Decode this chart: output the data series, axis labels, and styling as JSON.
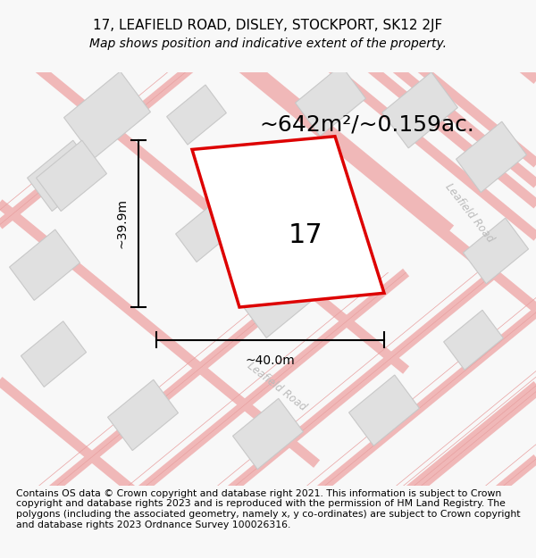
{
  "title_line1": "17, LEAFIELD ROAD, DISLEY, STOCKPORT, SK12 2JF",
  "title_line2": "Map shows position and indicative extent of the property.",
  "area_label": "~642m²/~0.159ac.",
  "property_number": "17",
  "width_label": "~40.0m",
  "height_label": "~39.9m",
  "footer_text": "Contains OS data © Crown copyright and database right 2021. This information is subject to Crown copyright and database rights 2023 and is reproduced with the permission of HM Land Registry. The polygons (including the associated geometry, namely x, y co-ordinates) are subject to Crown copyright and database rights 2023 Ordnance Survey 100026316.",
  "bg_color": "#f8f8f8",
  "map_bg_color": "#f5f5f5",
  "road_color": "#f0b8b8",
  "road_outline_color": "#e8a0a0",
  "building_color": "#e0e0e0",
  "building_edge_color": "#c8c8c8",
  "plot_color": "#dd0000",
  "road_label_color": "#bbbbbb",
  "road_label1": "Leafield Road",
  "road_label2": "Leafield Road",
  "title_fontsize": 11,
  "subtitle_fontsize": 10,
  "area_fontsize": 18,
  "number_fontsize": 22,
  "dim_fontsize": 10,
  "footer_fontsize": 7.8
}
